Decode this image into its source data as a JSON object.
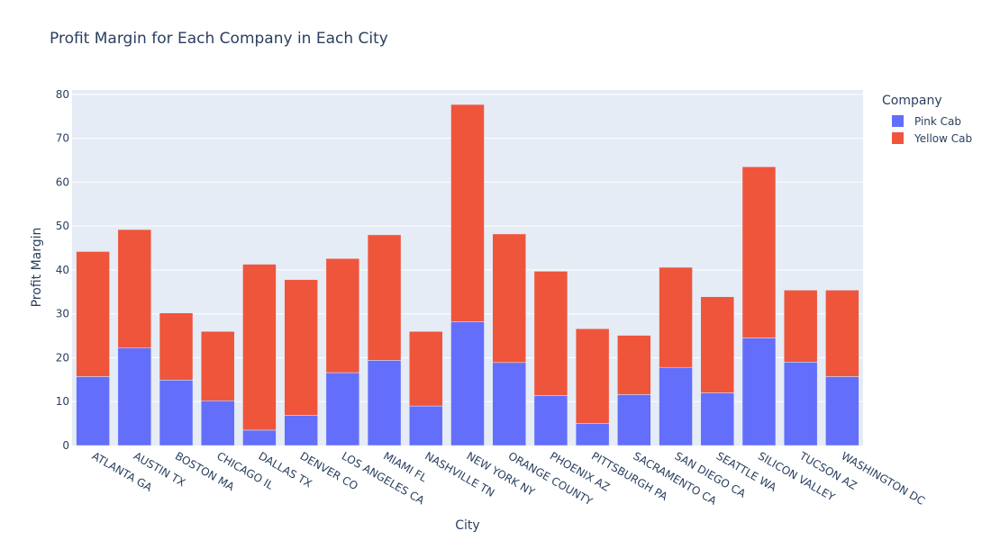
{
  "chart_data": {
    "type": "bar",
    "barmode": "stack",
    "title": "Profit Margin for Each Company in Each City",
    "xlabel": "City",
    "ylabel": "Profit Margin",
    "ylim": [
      0,
      81
    ],
    "yticks": [
      0,
      10,
      20,
      30,
      40,
      50,
      60,
      70,
      80
    ],
    "grid": true,
    "legend_title": "Company",
    "legend_position": "top-right",
    "categories": [
      "ATLANTA GA",
      "AUSTIN TX",
      "BOSTON MA",
      "CHICAGO IL",
      "DALLAS TX",
      "DENVER CO",
      "LOS ANGELES CA",
      "MIAMI FL",
      "NASHVILLE TN",
      "NEW YORK NY",
      "ORANGE COUNTY",
      "PHOENIX AZ",
      "PITTSBURGH PA",
      "SACRAMENTO CA",
      "SAN DIEGO CA",
      "SEATTLE WA",
      "SILICON VALLEY",
      "TUCSON AZ",
      "WASHINGTON DC"
    ],
    "series": [
      {
        "name": "Pink Cab",
        "color": "#636efa",
        "values": [
          15.7,
          22.2,
          14.9,
          10.2,
          3.5,
          6.9,
          16.6,
          19.4,
          9.0,
          28.2,
          18.9,
          11.4,
          5.0,
          11.6,
          17.8,
          12.0,
          24.5,
          19.0,
          15.7
        ]
      },
      {
        "name": "Yellow Cab",
        "color": "#ef553b",
        "values": [
          28.5,
          27.0,
          15.3,
          15.8,
          37.8,
          30.9,
          26.0,
          28.6,
          17.0,
          49.5,
          29.3,
          28.3,
          21.6,
          13.5,
          22.8,
          21.9,
          39.0,
          16.4,
          19.7
        ]
      }
    ]
  },
  "colors": {
    "plot_background": "#e5ecf6",
    "gridline": "#ffffff",
    "text": "#2a3f5f"
  }
}
